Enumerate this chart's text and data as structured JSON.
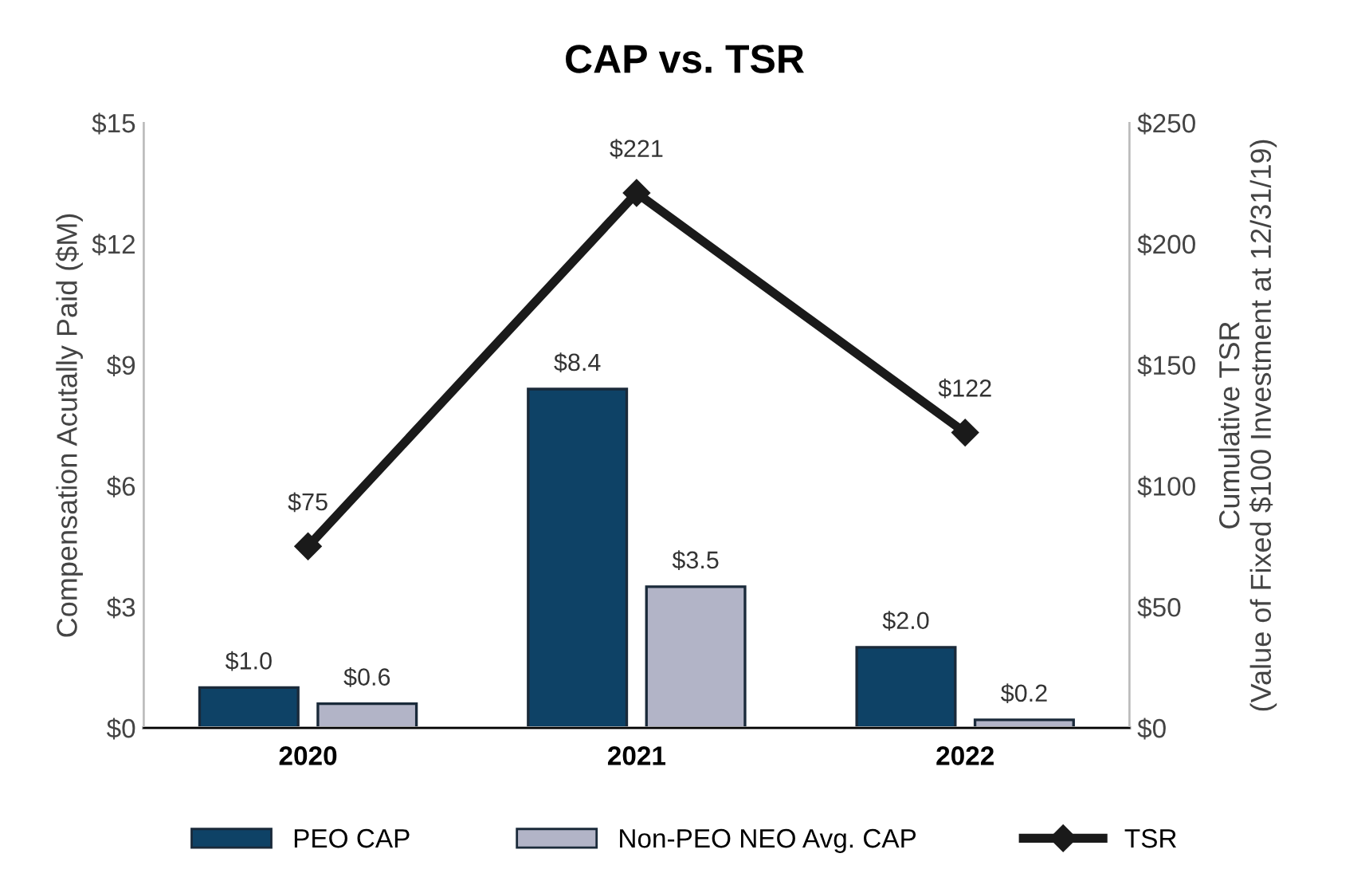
{
  "chart_data": {
    "type": "bar",
    "title": "CAP vs. TSR",
    "ylabel": "Compensation Acutally Paid ($M)",
    "y2label": "Cumulative TSR\n(Value of Fixed $100 Investment at 12/31/19)",
    "categories": [
      "2020",
      "2021",
      "2022"
    ],
    "series": [
      {
        "name": "PEO CAP",
        "color": "#0e4266",
        "values": [
          1.0,
          8.4,
          2.0
        ],
        "value_labels": [
          "$1.0",
          "$8.4",
          "$2.0"
        ]
      },
      {
        "name": "Non-PEO NEO Avg. CAP",
        "color": "#b2b4c7",
        "values": [
          0.6,
          3.5,
          0.2
        ],
        "value_labels": [
          "$0.6",
          "$3.5",
          "$0.2"
        ]
      },
      {
        "name": "TSR",
        "type": "line",
        "axis": "y2",
        "color": "#1a1a1a",
        "marker": "diamond",
        "values": [
          75,
          221,
          122
        ],
        "value_labels": [
          "$75",
          "$221",
          "$122"
        ]
      }
    ],
    "ylim": [
      0,
      15
    ],
    "yticks": [
      {
        "value": 0,
        "label": "$0"
      },
      {
        "value": 3,
        "label": "$3"
      },
      {
        "value": 6,
        "label": "$6"
      },
      {
        "value": 9,
        "label": "$9"
      },
      {
        "value": 12,
        "label": "$12"
      },
      {
        "value": 15,
        "label": "$15"
      }
    ],
    "y2lim": [
      0,
      250
    ],
    "y2ticks": [
      {
        "value": 0,
        "label": "$0"
      },
      {
        "value": 50,
        "label": "$50"
      },
      {
        "value": 100,
        "label": "$100"
      },
      {
        "value": 150,
        "label": "$150"
      },
      {
        "value": 200,
        "label": "$200"
      },
      {
        "value": 250,
        "label": "$250"
      }
    ],
    "grid": false,
    "legend": "bottom"
  }
}
